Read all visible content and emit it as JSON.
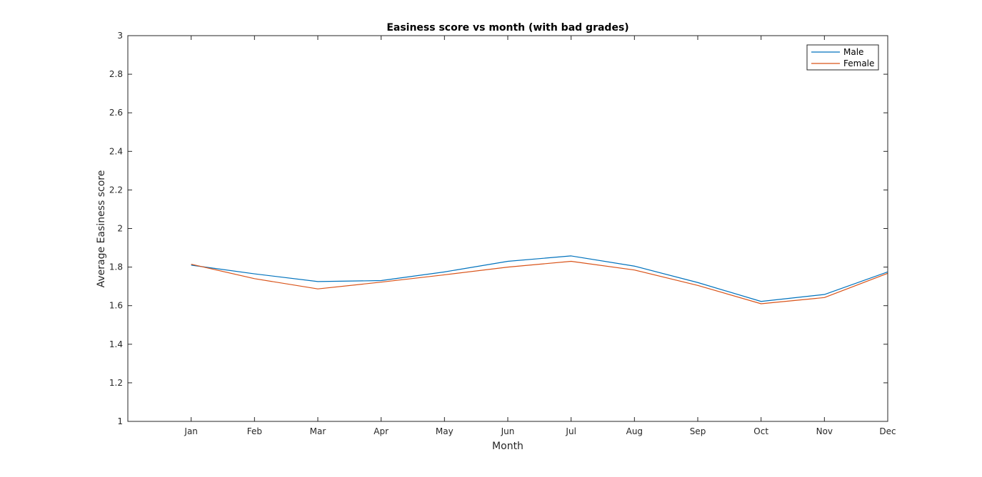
{
  "chart_data": {
    "type": "line",
    "title": "Easiness score vs month (with bad grades)",
    "xlabel": "Month",
    "ylabel": "Average Easiness score",
    "categories": [
      "Jan",
      "Feb",
      "Mar",
      "Apr",
      "May",
      "Jun",
      "Jul",
      "Aug",
      "Sep",
      "Oct",
      "Nov",
      "Dec"
    ],
    "x_range": [
      0,
      12
    ],
    "ylim": [
      1,
      3
    ],
    "yticks": [
      "1",
      "1.2",
      "1.4",
      "1.6",
      "1.8",
      "2",
      "2.2",
      "2.4",
      "2.6",
      "2.8",
      "3"
    ],
    "grid": false,
    "legend_position": "top-right",
    "series": [
      {
        "name": "Male",
        "color": "#0072bd",
        "values": [
          1.81,
          1.765,
          1.725,
          1.73,
          1.775,
          1.83,
          1.858,
          1.805,
          1.72,
          1.622,
          1.658,
          1.775
        ]
      },
      {
        "name": "Female",
        "color": "#d95319",
        "values": [
          1.815,
          1.74,
          1.687,
          1.722,
          1.76,
          1.8,
          1.83,
          1.785,
          1.705,
          1.61,
          1.642,
          1.768
        ]
      }
    ]
  }
}
